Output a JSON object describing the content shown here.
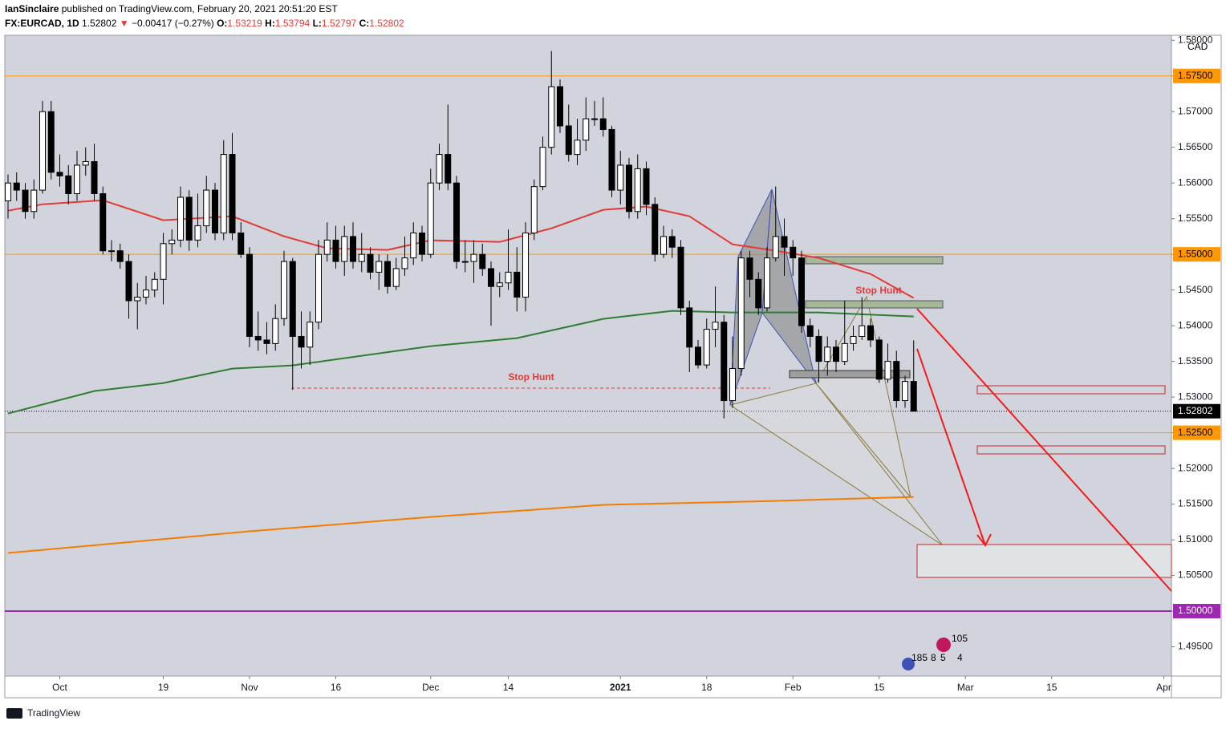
{
  "header": {
    "publisher": "IanSinclaire",
    "published": "published on TradingView.com, February 20, 2021 20:51:20 EST",
    "symbol": "FX:EURCAD, 1D",
    "price": "1.52802",
    "arrow": "▼",
    "change": "−0.00417 (−0.27%)",
    "o_label": "O:",
    "o": "1.53219",
    "h_label": "H:",
    "h": "1.53794",
    "l_label": "L:",
    "l": "1.52797",
    "c_label": "C:",
    "c": "1.52802"
  },
  "footer": {
    "brand": "TradingView"
  },
  "chart_data": {
    "type": "candlestick",
    "currency": "CAD",
    "up_color": "#ffffff",
    "down_color": "#000000",
    "grid": false,
    "x": [
      "2020-09-23",
      "2020-09-24",
      "2020-09-25",
      "2020-09-28",
      "2020-09-29",
      "2020-09-30",
      "2020-10-01",
      "2020-10-02",
      "2020-10-05",
      "2020-10-06",
      "2020-10-07",
      "2020-10-08",
      "2020-10-09",
      "2020-10-12",
      "2020-10-13",
      "2020-10-14",
      "2020-10-15",
      "2020-10-16",
      "2020-10-19",
      "2020-10-20",
      "2020-10-21",
      "2020-10-22",
      "2020-10-23",
      "2020-10-26",
      "2020-10-27",
      "2020-10-28",
      "2020-10-29",
      "2020-10-30",
      "2020-11-02",
      "2020-11-03",
      "2020-11-04",
      "2020-11-05",
      "2020-11-06",
      "2020-11-09",
      "2020-11-10",
      "2020-11-11",
      "2020-11-12",
      "2020-11-13",
      "2020-11-16",
      "2020-11-17",
      "2020-11-18",
      "2020-11-19",
      "2020-11-20",
      "2020-11-23",
      "2020-11-24",
      "2020-11-25",
      "2020-11-26",
      "2020-11-27",
      "2020-11-30",
      "2020-12-01",
      "2020-12-02",
      "2020-12-03",
      "2020-12-04",
      "2020-12-07",
      "2020-12-08",
      "2020-12-09",
      "2020-12-10",
      "2020-12-11",
      "2020-12-14",
      "2020-12-15",
      "2020-12-16",
      "2020-12-17",
      "2020-12-18",
      "2020-12-21",
      "2020-12-22",
      "2020-12-23",
      "2020-12-24",
      "2020-12-28",
      "2020-12-29",
      "2020-12-30",
      "2020-12-31",
      "2021-01-04",
      "2021-01-05",
      "2021-01-06",
      "2021-01-07",
      "2021-01-08",
      "2021-01-11",
      "2021-01-12",
      "2021-01-13",
      "2021-01-14",
      "2021-01-15",
      "2021-01-18",
      "2021-01-19",
      "2021-01-20",
      "2021-01-21",
      "2021-01-22",
      "2021-01-25",
      "2021-01-26",
      "2021-01-27",
      "2021-01-28",
      "2021-01-29",
      "2021-02-01",
      "2021-02-02",
      "2021-02-03",
      "2021-02-04",
      "2021-02-05",
      "2021-02-08",
      "2021-02-09",
      "2021-02-10",
      "2021-02-11",
      "2021-02-12",
      "2021-02-15",
      "2021-02-16",
      "2021-02-17",
      "2021-02-18",
      "2021-02-19"
    ],
    "open": [
      1.5575,
      1.56,
      1.559,
      1.556,
      1.559,
      1.57,
      1.5615,
      1.561,
      1.5585,
      1.5625,
      1.563,
      1.5585,
      1.5505,
      1.5505,
      1.549,
      1.5435,
      1.544,
      1.545,
      1.5465,
      1.5515,
      1.552,
      1.558,
      1.552,
      1.554,
      1.559,
      1.553,
      1.564,
      1.553,
      1.55,
      1.5385,
      1.538,
      1.5375,
      1.541,
      1.549,
      1.5385,
      1.537,
      1.5405,
      1.55,
      1.552,
      1.549,
      1.5525,
      1.549,
      1.55,
      1.5475,
      1.549,
      1.5455,
      1.548,
      1.5495,
      1.553,
      1.55,
      1.56,
      1.564,
      1.56,
      1.549,
      1.549,
      1.55,
      1.548,
      1.5455,
      1.546,
      1.5475,
      1.544,
      1.553,
      1.5595,
      1.565,
      1.5735,
      1.568,
      1.564,
      1.566,
      1.569,
      1.569,
      1.5675,
      1.559,
      1.5625,
      1.556,
      1.562,
      1.557,
      1.55,
      1.5525,
      1.551,
      1.5425,
      1.537,
      1.5345,
      1.5395,
      1.5405,
      1.5295,
      1.534,
      1.5495,
      1.5465,
      1.5425,
      1.5495,
      1.5525,
      1.551,
      1.5495,
      1.54,
      1.5385,
      1.535,
      1.537,
      1.535,
      1.5375,
      1.5385,
      1.54,
      1.538,
      1.5325,
      1.535,
      1.5295,
      1.53219
    ],
    "high": [
      1.5612,
      1.5615,
      1.56,
      1.5605,
      1.5715,
      1.5715,
      1.564,
      1.5625,
      1.5645,
      1.565,
      1.5655,
      1.5595,
      1.552,
      1.5515,
      1.55,
      1.546,
      1.547,
      1.5475,
      1.553,
      1.5535,
      1.5595,
      1.559,
      1.5585,
      1.561,
      1.56,
      1.566,
      1.567,
      1.5545,
      1.551,
      1.542,
      1.5405,
      1.543,
      1.5505,
      1.5495,
      1.542,
      1.542,
      1.552,
      1.5545,
      1.554,
      1.554,
      1.5545,
      1.553,
      1.551,
      1.55,
      1.55,
      1.5495,
      1.5525,
      1.5545,
      1.554,
      1.562,
      1.5655,
      1.571,
      1.561,
      1.552,
      1.552,
      1.5515,
      1.549,
      1.5475,
      1.5535,
      1.551,
      1.5545,
      1.5605,
      1.5665,
      1.5785,
      1.5745,
      1.571,
      1.569,
      1.572,
      1.5715,
      1.572,
      1.568,
      1.5645,
      1.5635,
      1.564,
      1.563,
      1.558,
      1.554,
      1.5535,
      1.552,
      1.5435,
      1.538,
      1.541,
      1.5455,
      1.5415,
      1.5385,
      1.5505,
      1.5505,
      1.5475,
      1.551,
      1.5595,
      1.555,
      1.552,
      1.5505,
      1.541,
      1.5395,
      1.5385,
      1.538,
      1.5435,
      1.54,
      1.544,
      1.541,
      1.5385,
      1.5375,
      1.5365,
      1.533,
      1.53794
    ],
    "low": [
      1.555,
      1.5575,
      1.555,
      1.555,
      1.5585,
      1.5605,
      1.5595,
      1.557,
      1.5575,
      1.561,
      1.5575,
      1.55,
      1.549,
      1.548,
      1.541,
      1.5395,
      1.543,
      1.544,
      1.543,
      1.55,
      1.551,
      1.5505,
      1.551,
      1.553,
      1.552,
      1.552,
      1.552,
      1.5495,
      1.537,
      1.5365,
      1.536,
      1.5365,
      1.54,
      1.531,
      1.534,
      1.5345,
      1.5395,
      1.549,
      1.548,
      1.547,
      1.548,
      1.5475,
      1.5465,
      1.545,
      1.5445,
      1.545,
      1.547,
      1.5485,
      1.549,
      1.5495,
      1.559,
      1.559,
      1.548,
      1.5475,
      1.546,
      1.547,
      1.54,
      1.544,
      1.545,
      1.542,
      1.542,
      1.552,
      1.559,
      1.564,
      1.567,
      1.563,
      1.5625,
      1.5645,
      1.568,
      1.5665,
      1.558,
      1.557,
      1.555,
      1.555,
      1.5555,
      1.549,
      1.5495,
      1.5495,
      1.5415,
      1.5335,
      1.534,
      1.534,
      1.537,
      1.527,
      1.5285,
      1.533,
      1.544,
      1.5415,
      1.542,
      1.549,
      1.547,
      1.547,
      1.539,
      1.537,
      1.532,
      1.533,
      1.5335,
      1.5345,
      1.5365,
      1.538,
      1.537,
      1.532,
      1.532,
      1.5285,
      1.5285,
      1.52797
    ],
    "close": [
      1.56,
      1.559,
      1.556,
      1.559,
      1.57,
      1.5615,
      1.561,
      1.5585,
      1.5625,
      1.563,
      1.5585,
      1.5505,
      1.5505,
      1.549,
      1.5435,
      1.544,
      1.545,
      1.5465,
      1.5515,
      1.552,
      1.558,
      1.552,
      1.554,
      1.559,
      1.553,
      1.564,
      1.553,
      1.55,
      1.5385,
      1.538,
      1.5375,
      1.541,
      1.549,
      1.5385,
      1.537,
      1.5405,
      1.55,
      1.552,
      1.549,
      1.5525,
      1.549,
      1.55,
      1.5475,
      1.549,
      1.5455,
      1.548,
      1.5495,
      1.553,
      1.55,
      1.56,
      1.564,
      1.56,
      1.549,
      1.549,
      1.55,
      1.548,
      1.5455,
      1.546,
      1.5475,
      1.544,
      1.553,
      1.5595,
      1.565,
      1.5735,
      1.568,
      1.564,
      1.566,
      1.569,
      1.569,
      1.5675,
      1.559,
      1.5625,
      1.556,
      1.562,
      1.557,
      1.55,
      1.5525,
      1.551,
      1.5425,
      1.537,
      1.5345,
      1.5395,
      1.5405,
      1.5295,
      1.534,
      1.5495,
      1.5465,
      1.5425,
      1.5495,
      1.5525,
      1.551,
      1.5495,
      1.54,
      1.5385,
      1.535,
      1.537,
      1.535,
      1.5375,
      1.5385,
      1.54,
      1.538,
      1.5325,
      1.535,
      1.5295,
      1.53219,
      1.52802
    ],
    "moving_averages": [
      {
        "color": "#e53935",
        "x": [
          "2020-09-23",
          "2020-09-29",
          "2020-10-08",
          "2020-10-19",
          "2020-10-29",
          "2020-11-06",
          "2020-11-13",
          "2020-11-24",
          "2020-12-01",
          "2020-12-11",
          "2020-12-21",
          "2020-12-30",
          "2021-01-07",
          "2021-01-14",
          "2021-01-21",
          "2021-01-28",
          "2021-02-04",
          "2021-02-12",
          "2021-02-19"
        ],
        "values": [
          1.55612,
          1.55702,
          1.55758,
          1.55478,
          1.55534,
          1.55253,
          1.55084,
          1.55062,
          1.55197,
          1.55174,
          1.55365,
          1.55624,
          1.55669,
          1.55534,
          1.5514,
          1.55051,
          1.54949,
          1.54725,
          1.54388
        ]
      },
      {
        "color": "#2e7d32",
        "x": [
          "2020-09-23",
          "2020-10-07",
          "2020-10-19",
          "2020-10-29",
          "2020-11-09",
          "2020-12-01",
          "2020-12-15",
          "2020-12-30",
          "2021-01-12",
          "2021-01-21",
          "2021-02-04",
          "2021-02-19"
        ],
        "values": [
          1.5277,
          1.53084,
          1.53197,
          1.53399,
          1.53444,
          1.53714,
          1.53826,
          1.54096,
          1.54208,
          1.54185,
          1.54185,
          1.54129
        ]
      },
      {
        "color": "#f57c00",
        "x": [
          "2020-09-23",
          "2020-11-02",
          "2020-12-01",
          "2020-12-30",
          "2021-01-28",
          "2021-02-19"
        ],
        "values": [
          1.50815,
          1.51118,
          1.5132,
          1.51489,
          1.51545,
          1.51601
        ]
      }
    ],
    "levels": [
      {
        "value": 1.575,
        "label": "1.57500",
        "color": "#ff9800"
      },
      {
        "value": 1.55,
        "label": "1.55000",
        "color": "#ff9800"
      },
      {
        "value": 1.525,
        "label": "1.52500",
        "color": "#ff9800"
      },
      {
        "value": 1.5,
        "label": "1.50000",
        "color": "#9c27b0"
      }
    ],
    "last_price": {
      "value": 1.52802,
      "label": "1.52802"
    },
    "ylim": [
      1.4909,
      1.5807
    ],
    "yticks": [
      {
        "value": 1.495,
        "label": "1.49500"
      },
      {
        "value": 1.5,
        "label": "1.50000"
      },
      {
        "value": 1.505,
        "label": "1.50500"
      },
      {
        "value": 1.51,
        "label": "1.51000"
      },
      {
        "value": 1.515,
        "label": "1.51500"
      },
      {
        "value": 1.52,
        "label": "1.52000"
      },
      {
        "value": 1.525,
        "label": "1.52500"
      },
      {
        "value": 1.53,
        "label": "1.53000"
      },
      {
        "value": 1.535,
        "label": "1.53500"
      },
      {
        "value": 1.54,
        "label": "1.54000"
      },
      {
        "value": 1.545,
        "label": "1.54500"
      },
      {
        "value": 1.55,
        "label": "1.55000"
      },
      {
        "value": 1.555,
        "label": "1.55500"
      },
      {
        "value": 1.56,
        "label": "1.56000"
      },
      {
        "value": 1.565,
        "label": "1.56500"
      },
      {
        "value": 1.57,
        "label": "1.57000"
      },
      {
        "value": 1.575,
        "label": "1.57500"
      },
      {
        "value": 1.58,
        "label": "1.58000"
      }
    ],
    "xticks": [
      {
        "value": "2020-10-01",
        "label": "Oct"
      },
      {
        "value": "2020-10-19",
        "label": "19"
      },
      {
        "value": "2020-11-02",
        "label": "Nov"
      },
      {
        "value": "2020-11-16",
        "label": "16"
      },
      {
        "value": "2020-12-01",
        "label": "Dec"
      },
      {
        "value": "2020-12-14",
        "label": "14"
      },
      {
        "value": "2021-01-04",
        "label": "2021"
      },
      {
        "value": "2021-01-18",
        "label": "18"
      },
      {
        "value": "2021-02-01",
        "label": "Feb"
      },
      {
        "value": "2021-02-15",
        "label": "15"
      },
      {
        "value": "2021-03-01",
        "label": "Mar"
      },
      {
        "value": "2021-03-15",
        "label": "15"
      },
      {
        "value": "2021-04-01",
        "label": "Apr"
      }
    ],
    "annotations": [
      {
        "text": "Stop Hunt"
      },
      {
        "text": "Stop Hunt"
      }
    ],
    "badges": [
      "105",
      "185",
      "8",
      "5",
      "4"
    ]
  }
}
